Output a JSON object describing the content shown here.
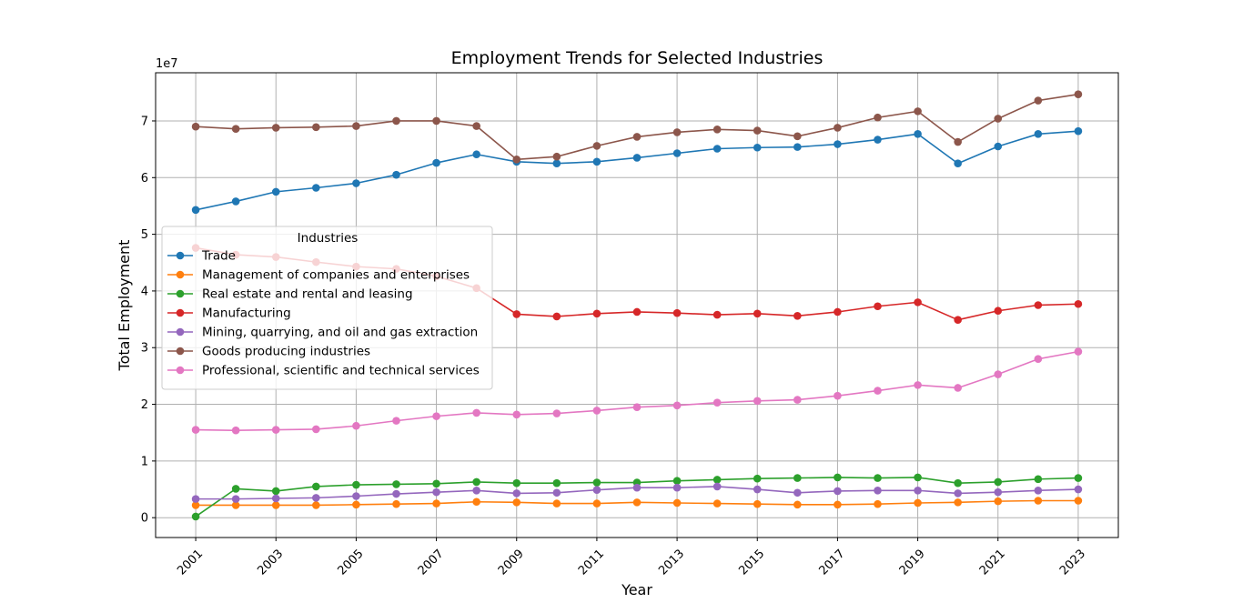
{
  "chart_data": {
    "type": "line",
    "title": "Employment Trends for Selected Industries",
    "xlabel": "Year",
    "ylabel": "Total Employment",
    "y_offset_label": "1e7",
    "xlim": [
      2000,
      2024
    ],
    "ylim": [
      -3500000,
      78500000
    ],
    "x_ticks": [
      2001,
      2003,
      2005,
      2007,
      2009,
      2011,
      2013,
      2015,
      2017,
      2019,
      2021,
      2023
    ],
    "y_ticks": [
      0,
      10000000,
      20000000,
      30000000,
      40000000,
      50000000,
      60000000,
      70000000
    ],
    "y_tick_labels": [
      "0",
      "1",
      "2",
      "3",
      "4",
      "5",
      "6",
      "7"
    ],
    "grid": true,
    "legend_title": "Industries",
    "legend_position": "center-left",
    "x": [
      2001,
      2002,
      2003,
      2004,
      2005,
      2006,
      2007,
      2008,
      2009,
      2010,
      2011,
      2012,
      2013,
      2014,
      2015,
      2016,
      2017,
      2018,
      2019,
      2020,
      2021,
      2022,
      2023
    ],
    "series": [
      {
        "name": "Trade",
        "color": "#1f77b4",
        "values": [
          54300000,
          55800000,
          57500000,
          58200000,
          59000000,
          60500000,
          62600000,
          64100000,
          62800000,
          62500000,
          62800000,
          63500000,
          64300000,
          65100000,
          65300000,
          65400000,
          65900000,
          66700000,
          67700000,
          62500000,
          65500000,
          67700000,
          68200000
        ]
      },
      {
        "name": "Management of companies and enterprises",
        "color": "#ff7f0e",
        "values": [
          2200000,
          2200000,
          2200000,
          2200000,
          2300000,
          2400000,
          2500000,
          2800000,
          2700000,
          2500000,
          2500000,
          2700000,
          2600000,
          2500000,
          2400000,
          2300000,
          2300000,
          2400000,
          2600000,
          2700000,
          2900000,
          3000000,
          3000000
        ]
      },
      {
        "name": "Real estate and rental and leasing",
        "color": "#2ca02c",
        "values": [
          200000,
          5100000,
          4700000,
          5500000,
          5800000,
          5900000,
          6000000,
          6300000,
          6100000,
          6100000,
          6200000,
          6200000,
          6500000,
          6700000,
          6900000,
          7000000,
          7100000,
          7000000,
          7100000,
          6100000,
          6300000,
          6800000,
          7000000
        ]
      },
      {
        "name": "Manufacturing",
        "color": "#d62728",
        "values": [
          47600000,
          46400000,
          46000000,
          45100000,
          44300000,
          43900000,
          42600000,
          40500000,
          35900000,
          35500000,
          36000000,
          36300000,
          36100000,
          35800000,
          36000000,
          35600000,
          36300000,
          37300000,
          38000000,
          34900000,
          36500000,
          37500000,
          37700000
        ]
      },
      {
        "name": "Mining, quarrying, and oil and gas extraction",
        "color": "#9467bd",
        "values": [
          3300000,
          3300000,
          3400000,
          3500000,
          3800000,
          4200000,
          4500000,
          4800000,
          4300000,
          4400000,
          4900000,
          5300000,
          5300000,
          5500000,
          5000000,
          4400000,
          4700000,
          4800000,
          4800000,
          4300000,
          4500000,
          4800000,
          5000000
        ]
      },
      {
        "name": "Goods producing industries",
        "color": "#8c564b",
        "values": [
          69000000,
          68600000,
          68800000,
          68900000,
          69100000,
          70000000,
          70000000,
          69100000,
          63200000,
          63700000,
          65600000,
          67200000,
          68000000,
          68500000,
          68300000,
          67300000,
          68800000,
          70600000,
          71700000,
          66300000,
          70400000,
          73600000,
          74700000
        ]
      },
      {
        "name": "Professional, scientific and technical services",
        "color": "#e377c2",
        "values": [
          15500000,
          15400000,
          15500000,
          15600000,
          16200000,
          17100000,
          17900000,
          18500000,
          18200000,
          18400000,
          18900000,
          19500000,
          19800000,
          20300000,
          20600000,
          20800000,
          21500000,
          22400000,
          23400000,
          22900000,
          25300000,
          28000000,
          29300000
        ]
      }
    ]
  }
}
